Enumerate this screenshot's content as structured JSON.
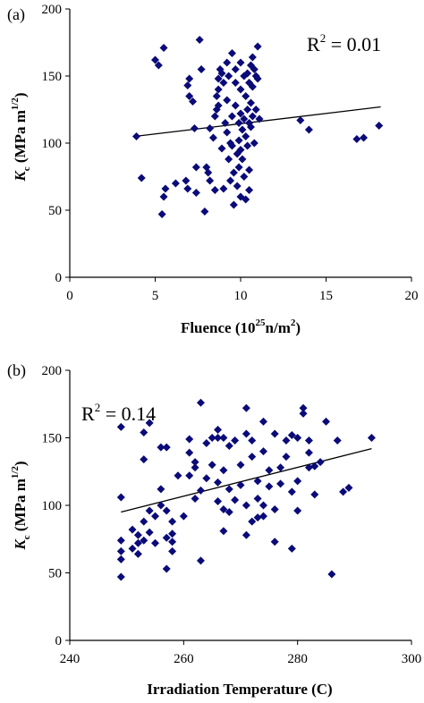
{
  "chart_data": [
    {
      "panel": "(a)",
      "type": "scatter",
      "xlabel": {
        "main": "Fluence (10",
        "sup": "25",
        "tail": "n/m",
        "sup2": "2",
        "close": ")"
      },
      "ylabel": {
        "sym": "K",
        "sub": "c",
        "unit": " (MPa m",
        "sup": "1/2",
        "close": ")"
      },
      "xlim": [
        0,
        20
      ],
      "ylim": [
        0,
        200
      ],
      "xticks": [
        0,
        5,
        10,
        15,
        20
      ],
      "yticks": [
        0,
        50,
        100,
        150,
        200
      ],
      "grid": false,
      "annotation": {
        "base": "R",
        "sup": "2",
        "rest": " = 0.01"
      },
      "trendline": {
        "x": [
          3.8,
          18.2
        ],
        "y": [
          105,
          127
        ]
      },
      "points": [
        [
          3.9,
          105
        ],
        [
          4.2,
          74
        ],
        [
          5.0,
          162
        ],
        [
          5.2,
          158
        ],
        [
          5.5,
          171
        ],
        [
          5.4,
          47
        ],
        [
          5.5,
          60
        ],
        [
          5.6,
          66
        ],
        [
          6.2,
          70
        ],
        [
          6.8,
          72
        ],
        [
          6.9,
          66
        ],
        [
          7.0,
          148
        ],
        [
          6.9,
          143
        ],
        [
          7.0,
          135
        ],
        [
          7.2,
          131
        ],
        [
          7.3,
          111
        ],
        [
          7.4,
          82
        ],
        [
          7.4,
          63
        ],
        [
          7.6,
          177
        ],
        [
          7.7,
          155
        ],
        [
          7.9,
          49
        ],
        [
          8.0,
          82
        ],
        [
          8.1,
          78
        ],
        [
          8.2,
          72
        ],
        [
          8.2,
          111
        ],
        [
          8.4,
          104
        ],
        [
          8.5,
          65
        ],
        [
          8.5,
          120
        ],
        [
          8.6,
          125
        ],
        [
          8.7,
          128
        ],
        [
          8.6,
          135
        ],
        [
          8.7,
          140
        ],
        [
          8.7,
          148
        ],
        [
          8.8,
          155
        ],
        [
          8.9,
          152
        ],
        [
          8.9,
          96
        ],
        [
          9.0,
          66
        ],
        [
          9.0,
          145
        ],
        [
          9.1,
          115
        ],
        [
          9.2,
          108
        ],
        [
          9.2,
          132
        ],
        [
          9.2,
          160
        ],
        [
          9.3,
          150
        ],
        [
          9.3,
          88
        ],
        [
          9.4,
          100
        ],
        [
          9.4,
          72
        ],
        [
          9.5,
          167
        ],
        [
          9.5,
          120
        ],
        [
          9.5,
          98
        ],
        [
          9.6,
          78
        ],
        [
          9.6,
          54
        ],
        [
          9.7,
          155
        ],
        [
          9.7,
          145
        ],
        [
          9.7,
          128
        ],
        [
          9.8,
          92
        ],
        [
          9.8,
          68
        ],
        [
          9.9,
          115
        ],
        [
          9.9,
          102
        ],
        [
          9.9,
          82
        ],
        [
          10.0,
          160
        ],
        [
          10.0,
          140
        ],
        [
          10.0,
          122
        ],
        [
          10.0,
          95
        ],
        [
          10.0,
          60
        ],
        [
          10.1,
          110
        ],
        [
          10.1,
          88
        ],
        [
          10.2,
          150
        ],
        [
          10.2,
          118
        ],
        [
          10.2,
          75
        ],
        [
          10.3,
          135
        ],
        [
          10.3,
          105
        ],
        [
          10.3,
          58
        ],
        [
          10.4,
          152
        ],
        [
          10.4,
          125
        ],
        [
          10.4,
          98
        ],
        [
          10.5,
          145
        ],
        [
          10.5,
          115
        ],
        [
          10.5,
          80
        ],
        [
          10.5,
          65
        ],
        [
          10.6,
          158
        ],
        [
          10.6,
          130
        ],
        [
          10.6,
          112
        ],
        [
          10.7,
          164
        ],
        [
          10.7,
          142
        ],
        [
          10.7,
          120
        ],
        [
          10.8,
          155
        ],
        [
          10.8,
          100
        ],
        [
          10.9,
          150
        ],
        [
          10.9,
          125
        ],
        [
          11.0,
          172
        ],
        [
          11.0,
          148
        ],
        [
          11.1,
          118
        ],
        [
          13.5,
          117
        ],
        [
          14.0,
          110
        ],
        [
          16.8,
          103
        ],
        [
          17.2,
          104
        ],
        [
          18.1,
          113
        ]
      ]
    },
    {
      "panel": "(b)",
      "type": "scatter",
      "xlabel": {
        "main": "Irradiation Temperature (C)"
      },
      "ylabel": {
        "sym": "K",
        "sub": "c",
        "unit": " (MPa m",
        "sup": "1/2",
        "close": ")"
      },
      "xlim": [
        240,
        300
      ],
      "ylim": [
        0,
        200
      ],
      "xticks": [
        240,
        260,
        280,
        300
      ],
      "yticks": [
        0,
        50,
        100,
        150,
        200
      ],
      "grid": false,
      "annotation": {
        "base": "R",
        "sup": "2",
        "rest": " = 0.14"
      },
      "trendline": {
        "x": [
          249,
          293
        ],
        "y": [
          95,
          142
        ]
      },
      "points": [
        [
          249,
          158
        ],
        [
          249,
          106
        ],
        [
          249,
          74
        ],
        [
          249,
          66
        ],
        [
          249,
          60
        ],
        [
          249,
          47
        ],
        [
          251,
          82
        ],
        [
          251,
          68
        ],
        [
          252,
          72
        ],
        [
          252,
          64
        ],
        [
          252,
          78
        ],
        [
          253,
          154
        ],
        [
          253,
          134
        ],
        [
          253,
          88
        ],
        [
          253,
          74
        ],
        [
          254,
          161
        ],
        [
          254,
          96
        ],
        [
          254,
          80
        ],
        [
          255,
          72
        ],
        [
          255,
          92
        ],
        [
          256,
          143
        ],
        [
          256,
          100
        ],
        [
          256,
          112
        ],
        [
          257,
          143
        ],
        [
          257,
          53
        ],
        [
          257,
          76
        ],
        [
          257,
          96
        ],
        [
          258,
          73
        ],
        [
          258,
          66
        ],
        [
          258,
          79
        ],
        [
          258,
          88
        ],
        [
          259,
          122
        ],
        [
          260,
          92
        ],
        [
          261,
          149
        ],
        [
          261,
          122
        ],
        [
          261,
          139
        ],
        [
          262,
          105
        ],
        [
          262,
          128
        ],
        [
          262,
          132
        ],
        [
          263,
          176
        ],
        [
          263,
          59
        ],
        [
          263,
          111
        ],
        [
          264,
          146
        ],
        [
          264,
          120
        ],
        [
          265,
          130
        ],
        [
          265,
          150
        ],
        [
          266,
          150
        ],
        [
          266,
          156
        ],
        [
          266,
          117
        ],
        [
          266,
          103
        ],
        [
          267,
          150
        ],
        [
          267,
          126
        ],
        [
          267,
          97
        ],
        [
          267,
          81
        ],
        [
          268,
          144
        ],
        [
          268,
          112
        ],
        [
          268,
          95
        ],
        [
          269,
          148
        ],
        [
          269,
          104
        ],
        [
          270,
          130
        ],
        [
          270,
          115
        ],
        [
          271,
          172
        ],
        [
          271,
          153
        ],
        [
          271,
          100
        ],
        [
          271,
          78
        ],
        [
          272,
          148
        ],
        [
          272,
          136
        ],
        [
          272,
          88
        ],
        [
          273,
          118
        ],
        [
          273,
          105
        ],
        [
          273,
          91
        ],
        [
          274,
          162
        ],
        [
          274,
          140
        ],
        [
          274,
          100
        ],
        [
          274,
          92
        ],
        [
          275,
          126
        ],
        [
          275,
          114
        ],
        [
          276,
          153
        ],
        [
          276,
          97
        ],
        [
          276,
          73
        ],
        [
          277,
          128
        ],
        [
          277,
          116
        ],
        [
          278,
          148
        ],
        [
          278,
          136
        ],
        [
          279,
          152
        ],
        [
          279,
          110
        ],
        [
          279,
          68
        ],
        [
          280,
          150
        ],
        [
          280,
          118
        ],
        [
          280,
          96
        ],
        [
          281,
          168
        ],
        [
          281,
          172
        ],
        [
          282,
          139
        ],
        [
          282,
          148
        ],
        [
          282,
          128
        ],
        [
          283,
          108
        ],
        [
          283,
          129
        ],
        [
          284,
          132
        ],
        [
          285,
          162
        ],
        [
          286,
          49
        ],
        [
          287,
          148
        ],
        [
          288,
          110
        ],
        [
          289,
          113
        ],
        [
          293,
          150
        ]
      ]
    }
  ],
  "colors": {
    "marker": "#0a0a78",
    "axis": "#000000",
    "trendline": "#000000"
  }
}
